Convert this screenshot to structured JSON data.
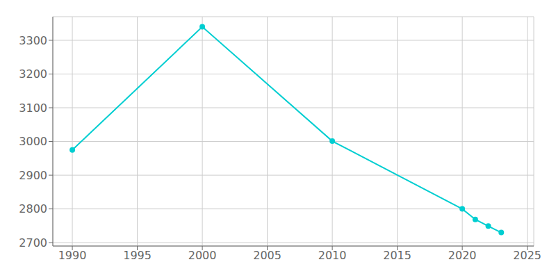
{
  "chart_data": {
    "type": "line",
    "x": [
      1990,
      2000,
      2010,
      2020,
      2021,
      2022,
      2023
    ],
    "values": [
      2975,
      3340,
      3001,
      2800,
      2769,
      2749,
      2730
    ],
    "color": "#00CED1",
    "marker": "circle",
    "xlim": [
      1988.5,
      2025.5
    ],
    "ylim": [
      2690,
      3370
    ],
    "xticks": [
      1990,
      1995,
      2000,
      2005,
      2010,
      2015,
      2020,
      2025
    ],
    "yticks": [
      2700,
      2800,
      2900,
      3000,
      3100,
      3200,
      3300
    ],
    "grid": true
  }
}
